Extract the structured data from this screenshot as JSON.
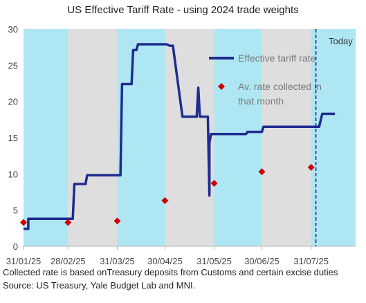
{
  "chart_data": {
    "type": "line",
    "title": "US Effective Tariff Rate - using 2024 trade weights",
    "xlabel": "",
    "ylabel": "",
    "ylim": [
      0,
      30
    ],
    "yticks": [
      0,
      5,
      10,
      15,
      20,
      25,
      30
    ],
    "x_range": [
      "2025-01-31",
      "2025-08-28"
    ],
    "xtick_labels": [
      "31/01/25",
      "28/02/25",
      "31/03/25",
      "30/04/25",
      "31/05/25",
      "30/06/25",
      "31/07/25"
    ],
    "xtick_dates": [
      "2025-01-31",
      "2025-02-28",
      "2025-03-31",
      "2025-04-30",
      "2025-05-31",
      "2025-06-30",
      "2025-07-31"
    ],
    "grid": false,
    "legend_position": "top-right",
    "background_bands": [
      {
        "start": "2025-01-31",
        "end": "2025-02-28",
        "color": "#aee7f3"
      },
      {
        "start": "2025-02-28",
        "end": "2025-03-31",
        "color": "#dedede"
      },
      {
        "start": "2025-03-31",
        "end": "2025-04-30",
        "color": "#aee7f3"
      },
      {
        "start": "2025-04-30",
        "end": "2025-05-31",
        "color": "#dedede"
      },
      {
        "start": "2025-05-31",
        "end": "2025-06-30",
        "color": "#aee7f3"
      },
      {
        "start": "2025-06-30",
        "end": "2025-07-31",
        "color": "#dedede"
      },
      {
        "start": "2025-07-31",
        "end": "2025-08-28",
        "color": "#aee7f3"
      }
    ],
    "series": [
      {
        "name": "Effective tariff rate",
        "style": "line",
        "color": "#1f2b8f",
        "points": [
          [
            "2025-01-31",
            2.4
          ],
          [
            "2025-02-03",
            2.4
          ],
          [
            "2025-02-03",
            3.8
          ],
          [
            "2025-03-03",
            3.8
          ],
          [
            "2025-03-04",
            8.6
          ],
          [
            "2025-03-11",
            8.6
          ],
          [
            "2025-03-12",
            9.8
          ],
          [
            "2025-04-02",
            9.8
          ],
          [
            "2025-04-03",
            22.4
          ],
          [
            "2025-04-09",
            22.4
          ],
          [
            "2025-04-10",
            27.1
          ],
          [
            "2025-04-12",
            27.1
          ],
          [
            "2025-04-13",
            27.9
          ],
          [
            "2025-05-01",
            27.9
          ],
          [
            "2025-05-03",
            27.7
          ],
          [
            "2025-05-05",
            27.7
          ],
          [
            "2025-05-11",
            17.9
          ],
          [
            "2025-05-20",
            17.9
          ],
          [
            "2025-05-21",
            21.9
          ],
          [
            "2025-05-22",
            17.9
          ],
          [
            "2025-05-27",
            17.9
          ],
          [
            "2025-05-28",
            7.0
          ],
          [
            "2025-05-28",
            14.3
          ],
          [
            "2025-05-29",
            15.5
          ],
          [
            "2025-06-20",
            15.5
          ],
          [
            "2025-06-21",
            15.8
          ],
          [
            "2025-06-30",
            15.8
          ],
          [
            "2025-07-01",
            16.5
          ],
          [
            "2025-08-05",
            16.5
          ],
          [
            "2025-08-07",
            18.3
          ],
          [
            "2025-08-15",
            18.3
          ]
        ]
      },
      {
        "name": "Av. rate collected in that month",
        "style": "marker",
        "marker": "diamond",
        "color": "#cc0000",
        "points": [
          [
            "2025-01-31",
            3.3
          ],
          [
            "2025-02-28",
            3.3
          ],
          [
            "2025-03-31",
            3.5
          ],
          [
            "2025-04-30",
            6.3
          ],
          [
            "2025-05-31",
            8.7
          ],
          [
            "2025-06-30",
            10.3
          ],
          [
            "2025-07-31",
            10.9
          ]
        ]
      }
    ],
    "annotations": [
      {
        "type": "vline",
        "x": "2025-08-03",
        "style": "dashed",
        "color": "#1f2b8f",
        "label": "Today"
      }
    ]
  },
  "legend": {
    "line_label": "Effective tariff rate",
    "marker_label_line1": "Av. rate collected in",
    "marker_label_line2": "that month"
  },
  "today_label": "Today",
  "footnotes": {
    "line1": "Collected rate is  based onTreasury deposits from Customs and certain excise duties",
    "line2": "Source: US Treasury, Yale Budget Lab and MNI."
  }
}
